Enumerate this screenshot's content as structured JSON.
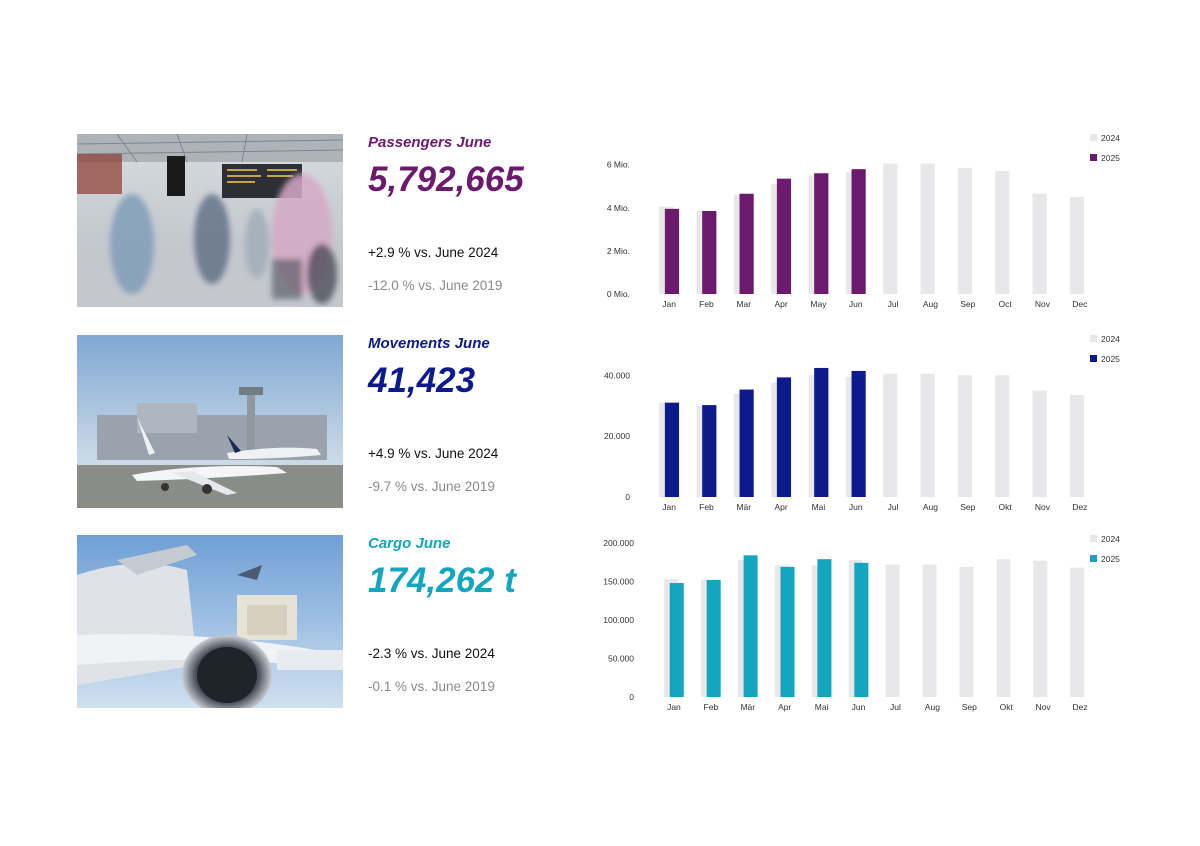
{
  "colors": {
    "passengers": "#6b1a6e",
    "movements": "#0d1a8c",
    "cargo": "#14a5bf",
    "bar_2024": "#e8e8ea"
  },
  "sections": [
    {
      "id": "passengers",
      "title": "Passengers June",
      "value": "5,792,665",
      "yoy": "+2.9 % vs. June 2024",
      "vs2019": "-12.0 % vs. June 2019",
      "photo_icon": "terminal-photo"
    },
    {
      "id": "movements",
      "title": "Movements June",
      "value": "41,423",
      "yoy": "+4.9 % vs. June 2024",
      "vs2019": "-9.7 % vs. June 2019",
      "photo_icon": "airport-apron-photo"
    },
    {
      "id": "cargo",
      "title": "Cargo June",
      "value": "174,262 t",
      "yoy": "-2.3 % vs. June 2024",
      "vs2019": "-0.1 % vs. June 2019",
      "photo_icon": "cargo-aircraft-photo"
    }
  ],
  "chart_data": [
    {
      "type": "bar",
      "categories": [
        "Jan",
        "Feb",
        "Mar",
        "Apr",
        "May",
        "Jun",
        "Jul",
        "Aug",
        "Sep",
        "Oct",
        "Nov",
        "Dec"
      ],
      "series": [
        {
          "name": "2024",
          "values": [
            4.05,
            3.85,
            4.6,
            5.1,
            5.5,
            5.65,
            6.05,
            6.05,
            5.85,
            5.7,
            4.65,
            4.5
          ]
        },
        {
          "name": "2025",
          "values": [
            3.95,
            3.85,
            4.65,
            5.35,
            5.6,
            5.79,
            null,
            null,
            null,
            null,
            null,
            null
          ]
        }
      ],
      "yticks": [
        0,
        2,
        4,
        6
      ],
      "ytick_labels": [
        "0 Mio.",
        "2 Mio.",
        "4 Mio.",
        "6 Mio."
      ],
      "ylim": [
        0,
        6.4
      ],
      "legend": "top-right",
      "grid": false
    },
    {
      "type": "bar",
      "categories": [
        "Jan",
        "Feb",
        "Mär",
        "Apr",
        "Mai",
        "Jun",
        "Jul",
        "Aug",
        "Sep",
        "Okt",
        "Nov",
        "Dez"
      ],
      "series": [
        {
          "name": "2024",
          "values": [
            31000,
            30000,
            34000,
            37500,
            40000,
            39500,
            40500,
            40500,
            40000,
            40000,
            35000,
            33500
          ]
        },
        {
          "name": "2025",
          "values": [
            31000,
            30200,
            35300,
            39300,
            42400,
            41423,
            null,
            null,
            null,
            null,
            null,
            null
          ]
        }
      ],
      "yticks": [
        0,
        20000,
        40000
      ],
      "ytick_labels": [
        "0",
        "20.000",
        "40.000"
      ],
      "ylim": [
        0,
        46000
      ],
      "legend": "top-right",
      "grid": false
    },
    {
      "type": "bar",
      "categories": [
        "Jan",
        "Feb",
        "Mär",
        "Apr",
        "Mai",
        "Jun",
        "Jul",
        "Aug",
        "Sep",
        "Okt",
        "Nov",
        "Dez"
      ],
      "series": [
        {
          "name": "2024",
          "values": [
            153000,
            152000,
            178000,
            171000,
            171000,
            178000,
            172000,
            172000,
            169000,
            179000,
            177000,
            168000
          ]
        },
        {
          "name": "2025",
          "values": [
            148000,
            152000,
            184000,
            169000,
            179000,
            174262,
            null,
            null,
            null,
            null,
            null,
            null
          ]
        }
      ],
      "yticks": [
        0,
        50000,
        100000,
        150000,
        200000
      ],
      "ytick_labels": [
        "0",
        "50.000",
        "100.000",
        "150.000",
        "200.000"
      ],
      "ylim": [
        0,
        200000
      ],
      "legend": "top-right",
      "grid": false
    }
  ]
}
